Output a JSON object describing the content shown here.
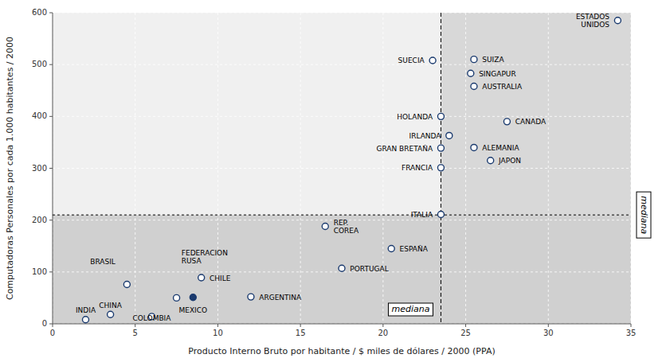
{
  "chart_data": {
    "type": "scatter",
    "xlabel": "Producto Interno Bruto por habitante / $ miles de dólares / 2000 (PPA)",
    "ylabel": "Computadoras Personales por cada 1.000 habitantes / 2000",
    "xlim": [
      0,
      35
    ],
    "ylim": [
      0,
      600
    ],
    "xticks": [
      0,
      5,
      10,
      15,
      20,
      25,
      30,
      35
    ],
    "yticks": [
      0,
      100,
      200,
      300,
      400,
      500,
      600
    ],
    "grid": true,
    "marker": "circle",
    "color": "#1a3a6e",
    "median_x": 23.5,
    "median_y": 210,
    "median_label": "mediana",
    "labels": [
      "INDIA",
      "CHINA",
      "COLOMBIA",
      "BRASIL",
      "FEDERACION\nRUSA",
      "CHILE",
      "MEXICO",
      "ARGENTINA",
      "REP.\nCOREA",
      "PORTUGAL",
      "ESPAÑA",
      "ITALIA",
      "SUECIA",
      "SUIZA",
      "SINGAPUR",
      "AUSTRALIA",
      "HOLANDA",
      "IRLANDA",
      "CANADA",
      "GRAN BRETAÑA",
      "ALEMANIA",
      "FRANCIA",
      "JAPON",
      "ESTADOS\nUNIDOS"
    ],
    "x": [
      2.0,
      3.5,
      6.0,
      4.5,
      7.5,
      9.0,
      8.5,
      12.0,
      16.5,
      17.5,
      20.5,
      23.5,
      23.0,
      25.5,
      25.3,
      25.5,
      23.5,
      24.0,
      27.5,
      23.5,
      25.5,
      23.5,
      26.5,
      34.2
    ],
    "values": [
      8,
      18,
      14,
      76,
      50,
      89,
      51,
      52,
      188,
      107,
      145,
      211,
      508,
      510,
      483,
      458,
      400,
      363,
      390,
      339,
      340,
      301,
      315,
      585
    ],
    "label_x": [
      2.0,
      3.5,
      6.0,
      3.8,
      7.8,
      9.5,
      8.5,
      12.5,
      17.0,
      18.0,
      21.0,
      23.0,
      22.5,
      26.0,
      25.8,
      26.0,
      23.0,
      23.5,
      28.0,
      23.0,
      26.0,
      23.0,
      27.0,
      33.7
    ],
    "label_y": [
      18,
      28,
      3,
      120,
      130,
      89,
      18,
      52,
      188,
      107,
      145,
      211,
      508,
      510,
      483,
      458,
      400,
      363,
      390,
      339,
      340,
      301,
      315,
      585
    ],
    "colors": [
      "#ffffff",
      "#ffffff",
      "#ffffff",
      "#ffffff",
      "#ffffff",
      "#ffffff",
      "#1a3a6e",
      "#ffffff",
      "#ffffff",
      "#ffffff",
      "#ffffff",
      "#ffffff",
      "#ffffff",
      "#ffffff",
      "#ffffff",
      "#ffffff",
      "#ffffff",
      "#ffffff",
      "#ffffff",
      "#ffffff",
      "#ffffff",
      "#ffffff",
      "#ffffff",
      "#ffffff"
    ]
  }
}
